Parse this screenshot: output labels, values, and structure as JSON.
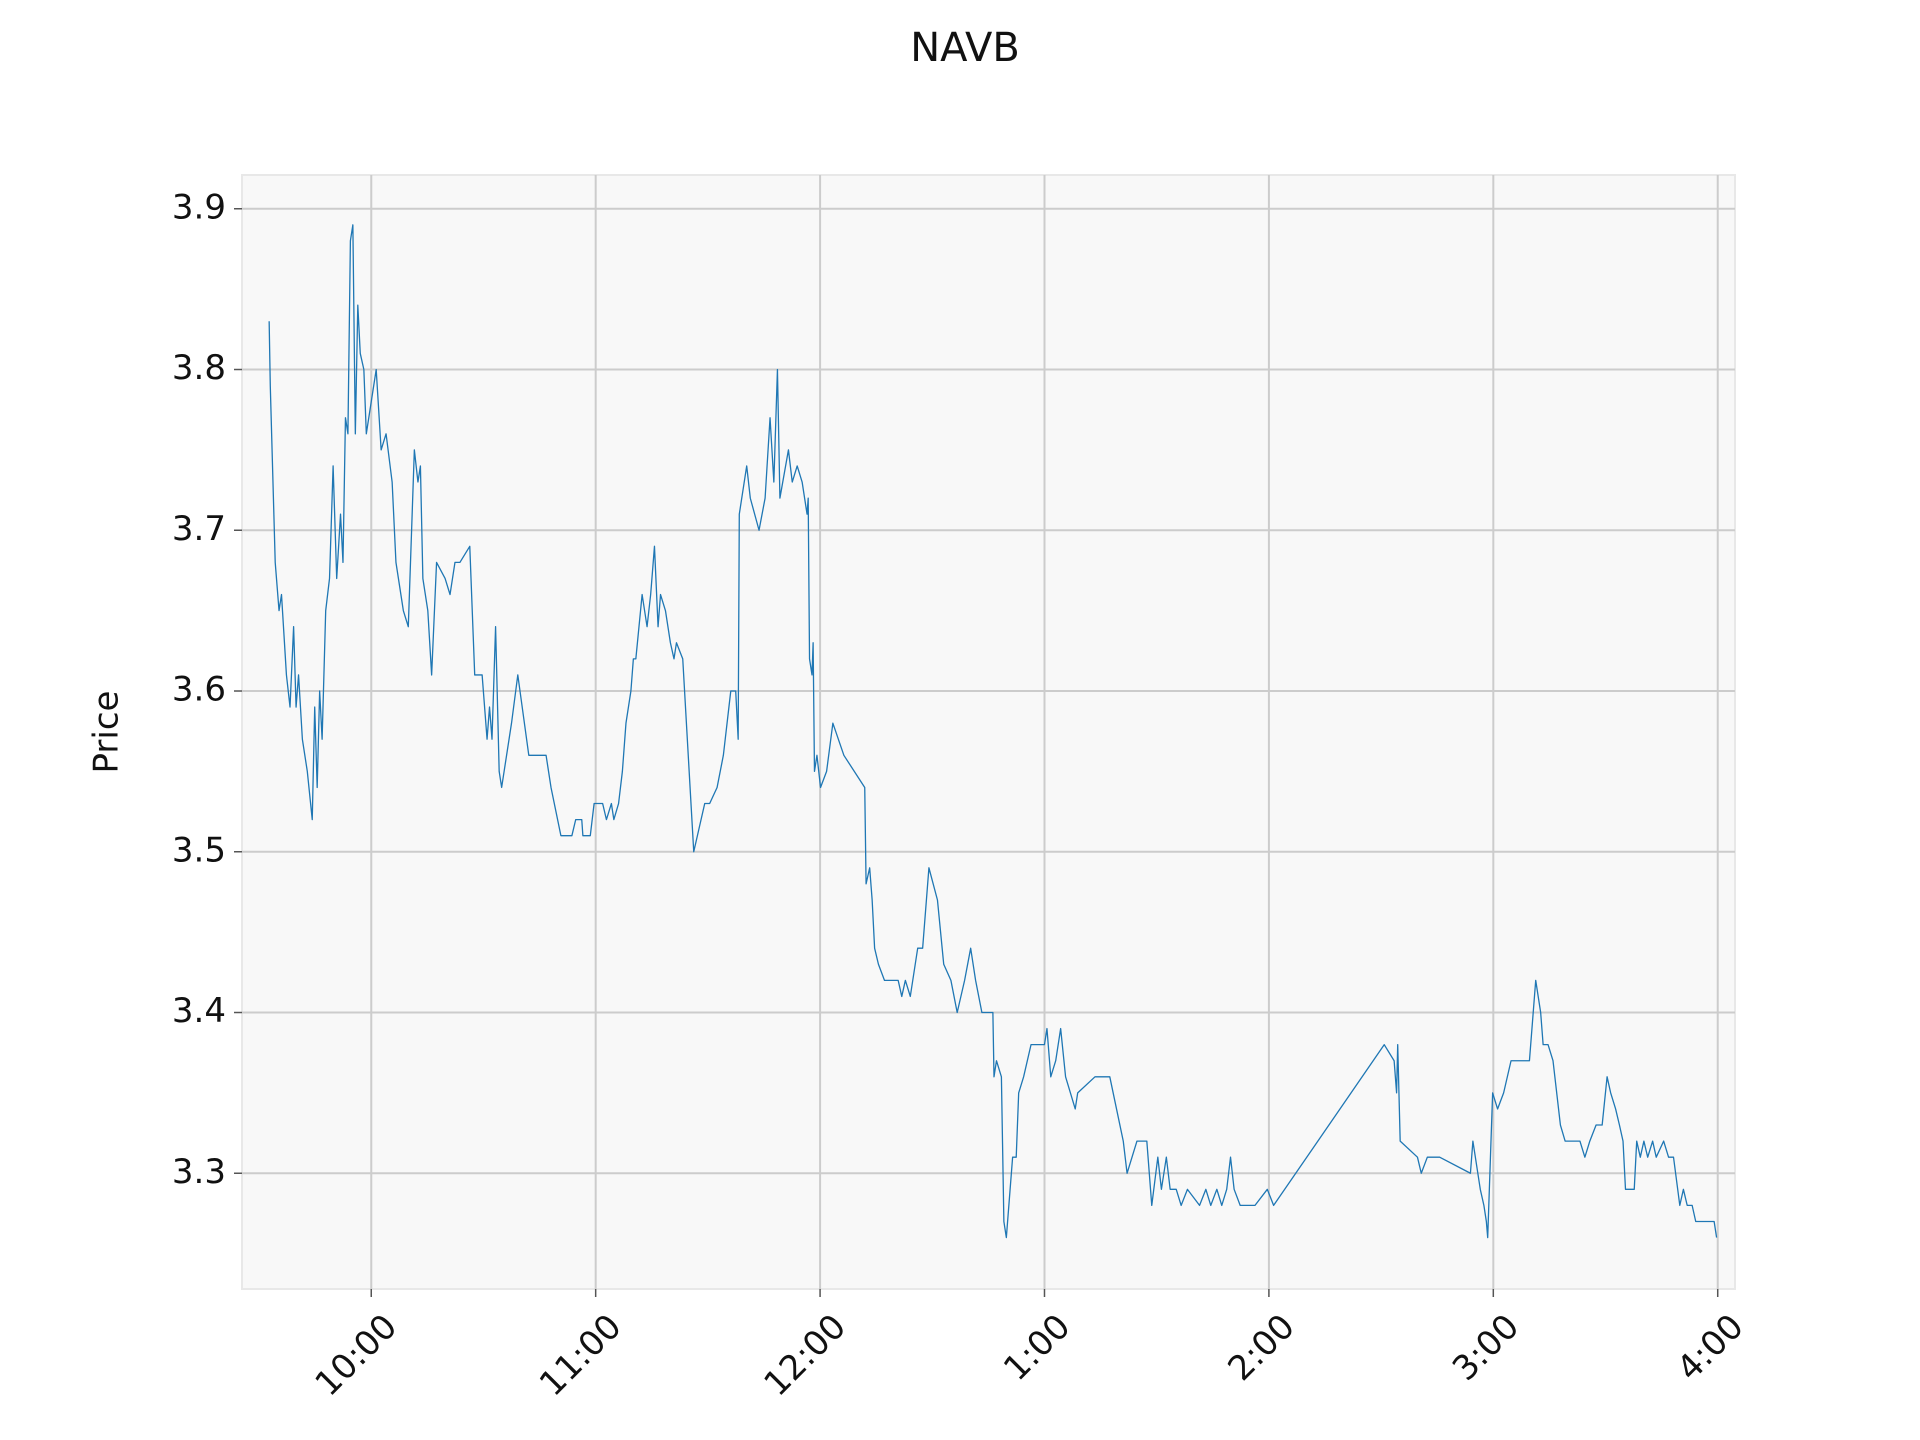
{
  "chart_data": {
    "type": "line",
    "title": "NAVB",
    "y_label": "Price",
    "color": "#1f77b4",
    "grid": true,
    "xlim": [
      9.424,
      16.077
    ],
    "ylim": [
      3.228,
      3.921
    ],
    "yticks": [
      3.3,
      3.4,
      3.5,
      3.6,
      3.7,
      3.8,
      3.9
    ],
    "xticks": [
      {
        "value": 10,
        "label": "10:00"
      },
      {
        "value": 11,
        "label": "11:00"
      },
      {
        "value": 12,
        "label": "12:00"
      },
      {
        "value": 13,
        "label": "1:00"
      },
      {
        "value": 14,
        "label": "2:00"
      },
      {
        "value": 15,
        "label": "3:00"
      },
      {
        "value": 16,
        "label": "4:00"
      }
    ],
    "x": [
      9.545,
      9.55,
      9.572,
      9.589,
      9.6,
      9.622,
      9.638,
      9.654,
      9.665,
      9.676,
      9.693,
      9.715,
      9.737,
      9.748,
      9.759,
      9.77,
      9.781,
      9.797,
      9.814,
      9.83,
      9.846,
      9.863,
      9.874,
      9.885,
      9.896,
      9.907,
      9.918,
      9.929,
      9.94,
      9.951,
      9.967,
      9.978,
      10.0,
      10.022,
      10.044,
      10.066,
      10.093,
      10.11,
      10.143,
      10.165,
      10.192,
      10.208,
      10.219,
      10.23,
      10.252,
      10.269,
      10.291,
      10.329,
      10.351,
      10.373,
      10.395,
      10.439,
      10.45,
      10.461,
      10.494,
      10.516,
      10.527,
      10.538,
      10.554,
      10.57,
      10.581,
      10.625,
      10.653,
      10.702,
      10.779,
      10.79,
      10.801,
      10.845,
      10.894,
      10.911,
      10.938,
      10.943,
      10.976,
      10.993,
      11.031,
      11.048,
      11.07,
      11.081,
      11.102,
      11.119,
      11.135,
      11.157,
      11.168,
      11.179,
      11.207,
      11.229,
      11.245,
      11.262,
      11.278,
      11.289,
      11.311,
      11.333,
      11.349,
      11.36,
      11.388,
      11.437,
      11.486,
      11.508,
      11.541,
      11.569,
      11.602,
      11.624,
      11.635,
      11.64,
      11.673,
      11.689,
      11.728,
      11.755,
      11.777,
      11.794,
      11.81,
      11.821,
      11.859,
      11.876,
      11.898,
      11.92,
      11.942,
      11.947,
      11.953,
      11.964,
      11.969,
      11.975,
      11.986,
      12.002,
      12.029,
      12.057,
      12.106,
      12.199,
      12.205,
      12.221,
      12.232,
      12.243,
      12.26,
      12.287,
      12.348,
      12.364,
      12.38,
      12.402,
      12.435,
      12.457,
      12.485,
      12.523,
      12.551,
      12.583,
      12.611,
      12.644,
      12.671,
      12.693,
      12.721,
      12.77,
      12.775,
      12.786,
      12.808,
      12.819,
      12.83,
      12.858,
      12.874,
      12.885,
      12.907,
      12.94,
      13.0,
      13.011,
      13.028,
      13.05,
      13.072,
      13.094,
      13.137,
      13.148,
      13.225,
      13.291,
      13.351,
      13.368,
      13.39,
      13.412,
      13.456,
      13.478,
      13.505,
      13.521,
      13.543,
      13.56,
      13.587,
      13.609,
      13.637,
      13.691,
      13.719,
      13.741,
      13.768,
      13.79,
      13.812,
      13.829,
      13.845,
      13.872,
      13.938,
      13.993,
      14.021,
      14.514,
      14.558,
      14.569,
      14.574,
      14.585,
      14.662,
      14.679,
      14.706,
      14.761,
      14.898,
      14.909,
      14.942,
      14.958,
      14.969,
      14.975,
      14.997,
      15.019,
      15.046,
      15.079,
      15.161,
      15.189,
      15.211,
      15.222,
      15.244,
      15.266,
      15.299,
      15.32,
      15.386,
      15.408,
      15.43,
      15.458,
      15.485,
      15.507,
      15.523,
      15.545,
      15.562,
      15.578,
      15.589,
      15.628,
      15.639,
      15.655,
      15.671,
      15.688,
      15.71,
      15.726,
      15.759,
      15.781,
      15.803,
      15.831,
      15.847,
      15.864,
      15.886,
      15.902,
      15.968,
      15.984,
      15.995
    ],
    "values": [
      3.83,
      3.79,
      3.68,
      3.65,
      3.66,
      3.61,
      3.59,
      3.64,
      3.59,
      3.61,
      3.57,
      3.55,
      3.52,
      3.59,
      3.54,
      3.6,
      3.57,
      3.65,
      3.67,
      3.74,
      3.67,
      3.71,
      3.68,
      3.77,
      3.76,
      3.88,
      3.89,
      3.76,
      3.84,
      3.81,
      3.8,
      3.76,
      3.78,
      3.8,
      3.75,
      3.76,
      3.73,
      3.68,
      3.65,
      3.64,
      3.75,
      3.73,
      3.74,
      3.67,
      3.65,
      3.61,
      3.68,
      3.67,
      3.66,
      3.68,
      3.68,
      3.69,
      3.65,
      3.61,
      3.61,
      3.57,
      3.59,
      3.57,
      3.64,
      3.55,
      3.54,
      3.58,
      3.61,
      3.56,
      3.56,
      3.55,
      3.54,
      3.51,
      3.51,
      3.52,
      3.52,
      3.51,
      3.51,
      3.53,
      3.53,
      3.52,
      3.53,
      3.52,
      3.53,
      3.55,
      3.58,
      3.6,
      3.62,
      3.62,
      3.66,
      3.64,
      3.66,
      3.69,
      3.64,
      3.66,
      3.65,
      3.63,
      3.62,
      3.63,
      3.62,
      3.5,
      3.53,
      3.53,
      3.54,
      3.56,
      3.6,
      3.6,
      3.57,
      3.71,
      3.74,
      3.72,
      3.7,
      3.72,
      3.77,
      3.73,
      3.8,
      3.72,
      3.75,
      3.73,
      3.74,
      3.73,
      3.71,
      3.72,
      3.62,
      3.61,
      3.63,
      3.55,
      3.56,
      3.54,
      3.55,
      3.58,
      3.56,
      3.54,
      3.48,
      3.49,
      3.47,
      3.44,
      3.43,
      3.42,
      3.42,
      3.41,
      3.42,
      3.41,
      3.44,
      3.44,
      3.49,
      3.47,
      3.43,
      3.42,
      3.4,
      3.42,
      3.44,
      3.42,
      3.4,
      3.4,
      3.36,
      3.37,
      3.36,
      3.27,
      3.26,
      3.31,
      3.31,
      3.35,
      3.36,
      3.38,
      3.38,
      3.39,
      3.36,
      3.37,
      3.39,
      3.36,
      3.34,
      3.35,
      3.36,
      3.36,
      3.32,
      3.3,
      3.31,
      3.32,
      3.32,
      3.28,
      3.31,
      3.29,
      3.31,
      3.29,
      3.29,
      3.28,
      3.29,
      3.28,
      3.29,
      3.28,
      3.29,
      3.28,
      3.29,
      3.31,
      3.29,
      3.28,
      3.28,
      3.29,
      3.28,
      3.38,
      3.37,
      3.35,
      3.38,
      3.32,
      3.31,
      3.3,
      3.31,
      3.31,
      3.3,
      3.32,
      3.29,
      3.28,
      3.27,
      3.26,
      3.35,
      3.34,
      3.35,
      3.37,
      3.37,
      3.42,
      3.4,
      3.38,
      3.38,
      3.37,
      3.33,
      3.32,
      3.32,
      3.31,
      3.32,
      3.33,
      3.33,
      3.36,
      3.35,
      3.34,
      3.33,
      3.32,
      3.29,
      3.29,
      3.32,
      3.31,
      3.32,
      3.31,
      3.32,
      3.31,
      3.32,
      3.31,
      3.31,
      3.28,
      3.29,
      3.28,
      3.28,
      3.27,
      3.27,
      3.27,
      3.26
    ]
  }
}
